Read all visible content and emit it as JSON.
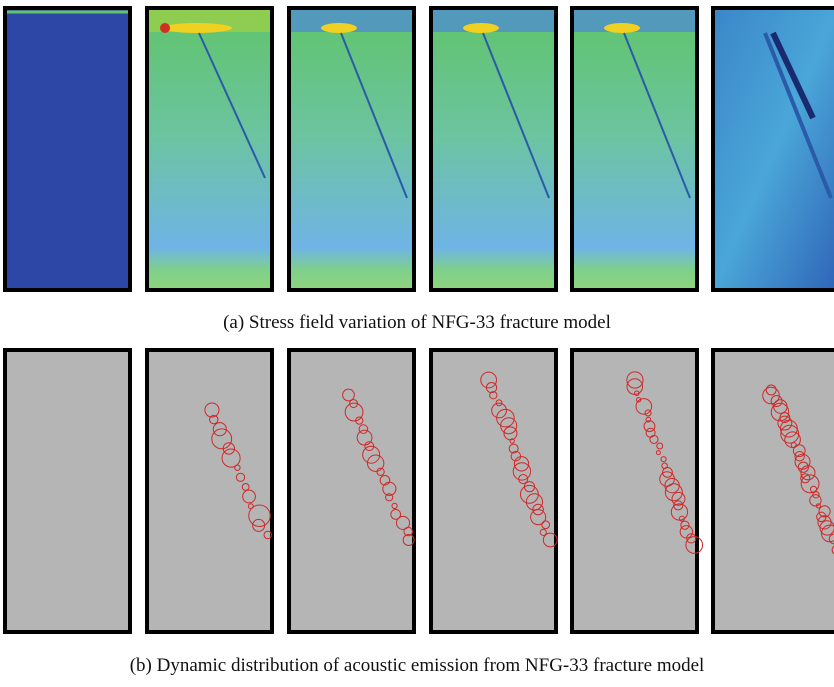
{
  "figure": {
    "caption_a": "(a) Stress field variation of NFG-33 fracture model",
    "caption_b": "(b) Dynamic distribution of acoustic emission from NFG-33 fracture model"
  }
}
